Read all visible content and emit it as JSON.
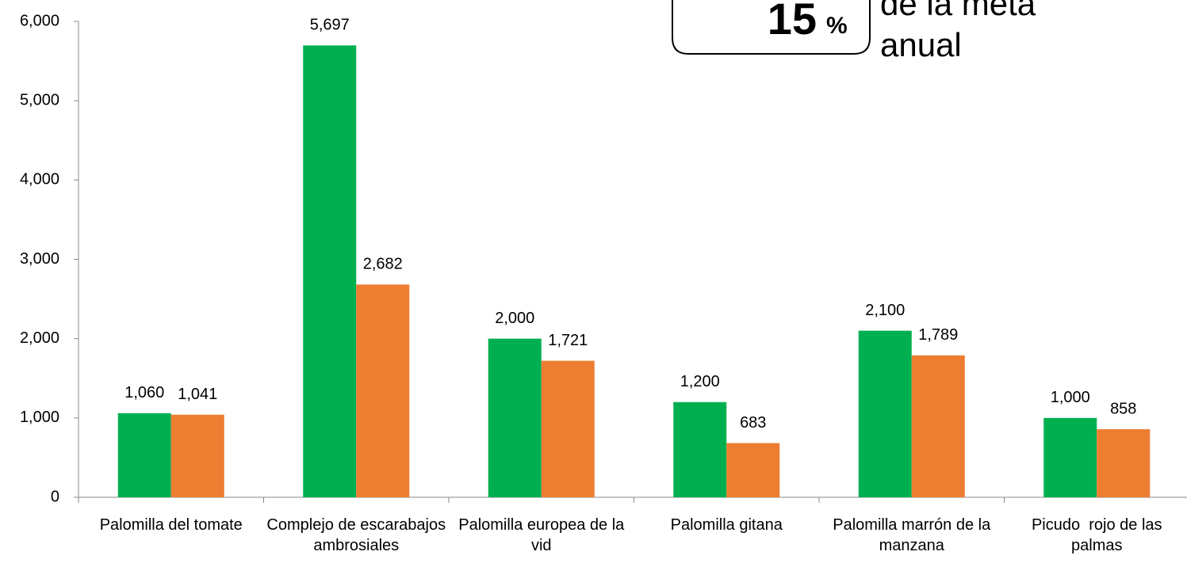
{
  "chart_data": {
    "type": "bar",
    "categories": [
      "Palomilla del tomate",
      "Complejo de escarabajos ambrosiales",
      "Palomilla europea de la vid",
      "Palomilla gitana",
      "Palomilla marrón de la manzana",
      "Picudo  rojo de las palmas"
    ],
    "series": [
      {
        "color": "#00b050",
        "values": [
          1060,
          5697,
          2000,
          1200,
          2100,
          1000
        ],
        "value_labels": [
          "1,060",
          "5,697",
          "2,000",
          "1,200",
          "2,100",
          "1,000"
        ]
      },
      {
        "color": "#ed7d31",
        "values": [
          1041,
          2682,
          1721,
          683,
          1789,
          858
        ],
        "value_labels": [
          "1,041",
          "2,682",
          "1,721",
          "683",
          "1,789",
          "858"
        ]
      }
    ],
    "ylim": [
      0,
      6000
    ],
    "yticks": [
      0,
      {
        "value": 1000,
        "label": "1,000"
      },
      {
        "value": 2000,
        "label": "2,000"
      },
      {
        "value": 3000,
        "label": "3,000"
      },
      {
        "value": 4000,
        "label": "4,000"
      },
      {
        "value": 5000,
        "label": "5,000"
      },
      {
        "value": 6000,
        "label": "6,000"
      }
    ],
    "grid": false,
    "annotations": {
      "number": "15",
      "unit": "%",
      "text_line1": "de la meta",
      "text_line2": "anual"
    }
  }
}
